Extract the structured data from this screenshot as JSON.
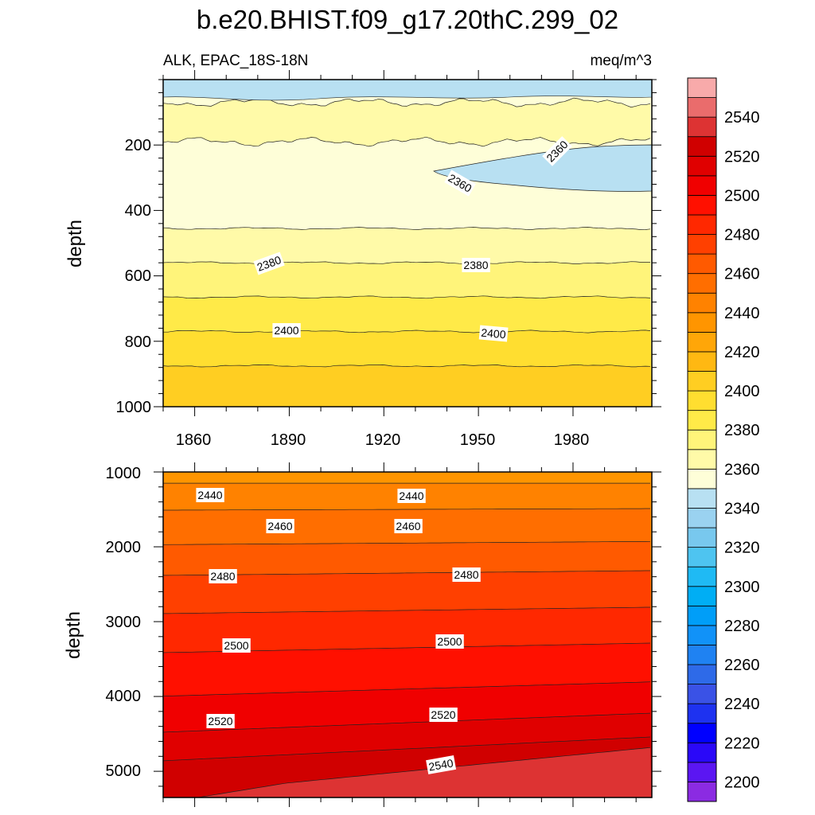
{
  "chart_data": {
    "type": "heatmap",
    "title": "b.e20.BHIST.f09_g17.20thC.299_02",
    "subtitle_left": "ALK, EPAC_18S-18N",
    "subtitle_right": "meq/m^3",
    "variable": "ALK",
    "region": "EPAC_18S-18N",
    "units": "meq/m^3",
    "x_ticks": [
      "1860",
      "1890",
      "1920",
      "1950",
      "1980"
    ],
    "xlim": [
      1850,
      2005
    ],
    "panels": [
      {
        "name": "upper",
        "ylabel": "depth",
        "ylim": [
          0,
          1000
        ],
        "y_reversed": true,
        "y_ticks": [
          "200",
          "400",
          "600",
          "800",
          "1000"
        ],
        "contour_labels": [
          "2360",
          "2360",
          "2380",
          "2380",
          "2400",
          "2400"
        ],
        "layers": [
          {
            "from_depth": 0,
            "value": 2355
          },
          {
            "from_depth": 70,
            "value": 2365
          },
          {
            "from_depth": 190,
            "value": 2355
          },
          {
            "from_depth": 455,
            "value": 2365
          },
          {
            "from_depth": 560,
            "value": 2375
          },
          {
            "from_depth": 665,
            "value": 2385
          },
          {
            "from_depth": 770,
            "value": 2395
          },
          {
            "from_depth": 875,
            "value": 2405
          }
        ]
      },
      {
        "name": "lower",
        "ylabel": "depth",
        "ylim": [
          1000,
          5350
        ],
        "y_reversed": true,
        "y_ticks": [
          "1000",
          "2000",
          "3000",
          "4000",
          "5000"
        ],
        "contour_labels": [
          "2440",
          "2440",
          "2460",
          "2460",
          "2480",
          "2480",
          "2500",
          "2500",
          "2520",
          "2520",
          "2540"
        ],
        "layers": [
          {
            "from_depth": 1000,
            "value": 2435
          },
          {
            "from_depth": 1150,
            "value": 2445
          },
          {
            "from_depth": 1500,
            "value": 2455
          },
          {
            "from_depth": 1950,
            "value": 2465
          },
          {
            "from_depth": 2350,
            "value": 2475
          },
          {
            "from_depth": 2850,
            "value": 2485
          },
          {
            "from_depth": 3350,
            "value": 2495
          },
          {
            "from_depth": 3900,
            "value": 2505
          },
          {
            "from_depth": 4350,
            "value": 2515
          },
          {
            "from_depth": 4700,
            "value": 2525
          },
          {
            "from_depth": 5000,
            "value": 2535
          }
        ]
      }
    ],
    "colorbar": {
      "min": 2190,
      "max": 2560,
      "step": 10,
      "labels": [
        "2200",
        "2220",
        "2240",
        "2260",
        "2280",
        "2300",
        "2320",
        "2340",
        "2360",
        "2380",
        "2400",
        "2420",
        "2440",
        "2460",
        "2480",
        "2500",
        "2520",
        "2540"
      ],
      "colors": [
        "#8b2be2",
        "#5b16f2",
        "#2a08f8",
        "#0000ff",
        "#1e32f0",
        "#3a52e6",
        "#2e6ae8",
        "#1f82f2",
        "#1192f8",
        "#009ef8",
        "#00aef4",
        "#1fbaf4",
        "#4ec4f0",
        "#78c8ee",
        "#9ad2f0",
        "#b8e0f2",
        "#fefed8",
        "#fffaa8",
        "#fff47a",
        "#ffea48",
        "#ffde30",
        "#ffce22",
        "#ffb812",
        "#ffa608",
        "#ff9500",
        "#ff8200",
        "#ff6e00",
        "#ff5a00",
        "#ff4000",
        "#ff2800",
        "#ff1000",
        "#f00000",
        "#e00000",
        "#d00000",
        "#dd3333",
        "#ea6c6c",
        "#f8aaaa"
      ]
    }
  }
}
